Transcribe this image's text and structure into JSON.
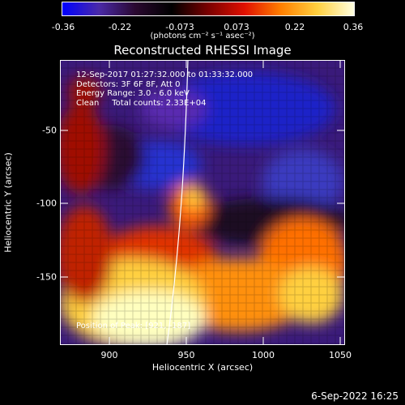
{
  "colorbar": {
    "ticks": [
      "-0.36",
      "-0.22",
      "-0.073",
      "0.073",
      "0.22",
      "0.36"
    ],
    "units_label": "(photons cm⁻² s⁻¹ asec⁻²)"
  },
  "title": "Reconstructed RHESSI Image",
  "info": {
    "time_range": "12-Sep-2017 01:27:32.000 to 01:33:32.000",
    "detectors": "Detectors: 3F 6F 8F, Att 0",
    "energy": "Energy Range: 3.0 - 6.0 keV",
    "clean": "Clean     Total counts: 2.33E+04"
  },
  "position_label": "Position of Peak: [921, -187]",
  "axes": {
    "xlabel": "Heliocentric X (arcsec)",
    "ylabel": "Heliocentric Y (arcsec)",
    "xticks": [
      "900",
      "950",
      "1000",
      "1050"
    ],
    "yticks": [
      "-50",
      "-100",
      "-150"
    ]
  },
  "footer": "6-Sep-2022 16:25",
  "colors": {
    "background": "#000000",
    "foreground": "#ffffff",
    "colormap": [
      "#0000ff",
      "#4a2aa8",
      "#2a0830",
      "#000000",
      "#7a0000",
      "#e01000",
      "#ff8000",
      "#ffd040",
      "#ffffe0"
    ]
  }
}
